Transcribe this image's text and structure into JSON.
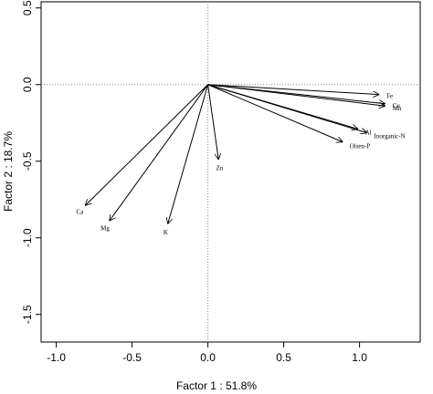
{
  "chart_data": {
    "type": "biplot",
    "xlabel": "Factor 1 : 51.8%",
    "ylabel": "Factor 2 : 18.7%",
    "xlim": [
      -1.1,
      1.4
    ],
    "ylim": [
      -1.68,
      0.54
    ],
    "xticks": [
      {
        "value": -1.0,
        "label": "-1.0"
      },
      -0.5,
      {
        "value": 0.0,
        "label": "0.0"
      },
      0.5,
      {
        "value": 1.0,
        "label": "1.0"
      }
    ],
    "yticks": [
      0.5,
      {
        "value": 0.0,
        "label": "0.0"
      },
      -0.5,
      {
        "value": -1.0,
        "label": "-1.0"
      },
      -1.5
    ],
    "color": "#000000",
    "vectors": [
      {
        "name": "Fe",
        "x": 1.13,
        "y": -0.065
      },
      {
        "name": "Cu",
        "x": 1.17,
        "y": -0.125
      },
      {
        "name": "Mn",
        "x": 1.17,
        "y": -0.14
      },
      {
        "name": "Al",
        "x": 0.99,
        "y": -0.29
      },
      {
        "name": "Inorganic-N",
        "x": 1.05,
        "y": -0.315
      },
      {
        "name": "Olsen-P",
        "x": 0.89,
        "y": -0.375
      },
      {
        "name": "Zn",
        "x": 0.07,
        "y": -0.49
      },
      {
        "name": "K",
        "x": -0.265,
        "y": -0.91
      },
      {
        "name": "Mg",
        "x": -0.65,
        "y": -0.89
      },
      {
        "name": "Ca",
        "x": -0.81,
        "y": -0.79
      }
    ]
  }
}
